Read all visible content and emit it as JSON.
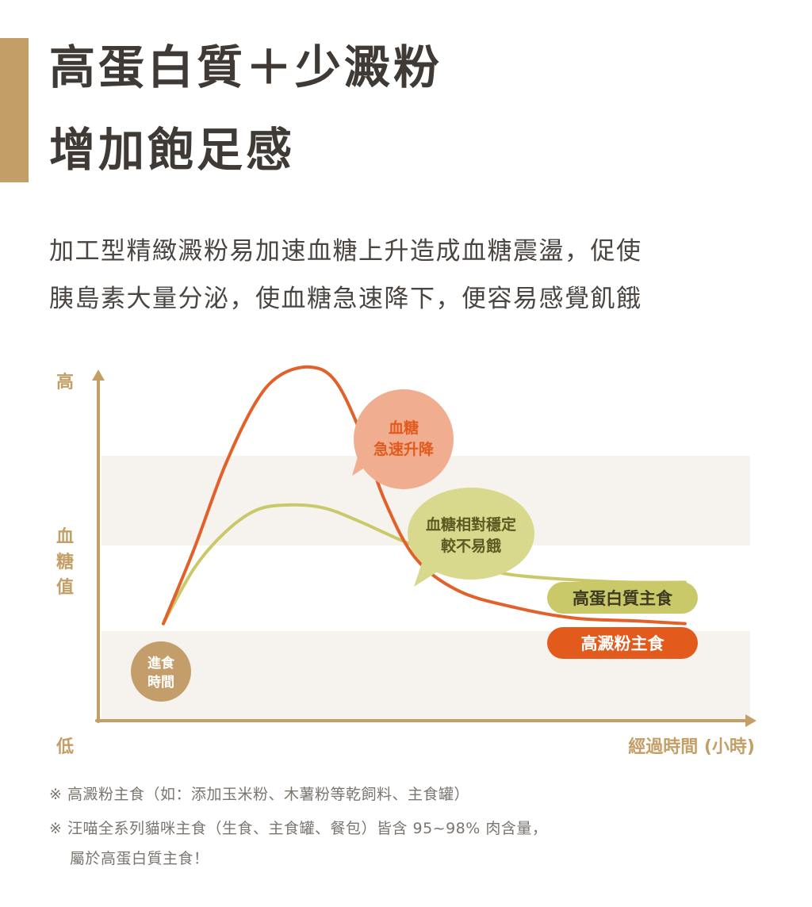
{
  "colors": {
    "accent": "#c39f67",
    "axis": "#c39f67",
    "band": "#f6f3ee",
    "high_starch": "#e2612a",
    "high_protein": "#c9c96a",
    "bubble_spike": "#f1ad8f",
    "bubble_stable": "#d8d98c",
    "start_dot": "#c49e6a"
  },
  "title": {
    "line1": "高蛋白質＋少澱粉",
    "line2": "增加飽足感"
  },
  "intro": {
    "line1": "加工型精緻澱粉易加速血糖上升造成血糖震盪，促使",
    "line2": "胰島素大量分泌，使血糖急速降下，便容易感覺飢餓"
  },
  "chart_data": {
    "type": "line",
    "y_axis": {
      "label_top": "高",
      "label_mid": [
        "血",
        "糖",
        "值"
      ],
      "label_bottom": "低"
    },
    "x_axis": {
      "label": "經過時間 (小時)"
    },
    "start_marker": {
      "line1": "進食",
      "line2": "時間"
    },
    "series": [
      {
        "name": "高澱粉主食",
        "color_key": "high_starch",
        "values": [
          [
            0,
            0.05
          ],
          [
            0.05,
            0.32
          ],
          [
            0.1,
            0.62
          ],
          [
            0.15,
            0.85
          ],
          [
            0.19,
            0.95
          ],
          [
            0.24,
            0.98
          ],
          [
            0.28,
            0.93
          ],
          [
            0.32,
            0.75
          ],
          [
            0.36,
            0.5
          ],
          [
            0.41,
            0.29
          ],
          [
            0.48,
            0.17
          ],
          [
            0.57,
            0.11
          ],
          [
            0.67,
            0.07
          ],
          [
            0.77,
            0.06
          ],
          [
            0.85,
            0.05
          ]
        ]
      },
      {
        "name": "高蛋白質主食",
        "color_key": "high_protein",
        "values": [
          [
            0,
            0.05
          ],
          [
            0.05,
            0.25
          ],
          [
            0.1,
            0.38
          ],
          [
            0.15,
            0.46
          ],
          [
            0.2,
            0.48
          ],
          [
            0.26,
            0.47
          ],
          [
            0.32,
            0.42
          ],
          [
            0.39,
            0.35
          ],
          [
            0.47,
            0.28
          ],
          [
            0.56,
            0.23
          ],
          [
            0.66,
            0.21
          ],
          [
            0.76,
            0.2
          ],
          [
            0.85,
            0.2
          ]
        ]
      }
    ],
    "annotations": {
      "spike": {
        "line1": "血糖",
        "line2": "急速升降"
      },
      "stable": {
        "line1": "血糖相對穩定",
        "line2": "較不易餓"
      }
    },
    "legend": [
      {
        "label": "高蛋白質主食",
        "color_key": "high_protein"
      },
      {
        "label": "高澱粉主食",
        "color_key": "high_starch"
      }
    ]
  },
  "notes": {
    "n1": "※ 高澱粉主食（如：添加玉米粉、木薯粉等乾飼料、主食罐）",
    "n2": "※ 汪喵全系列貓咪主食（生食、主食罐、餐包）皆含 95~98% 肉含量，",
    "n3": "屬於高蛋白質主食！"
  }
}
